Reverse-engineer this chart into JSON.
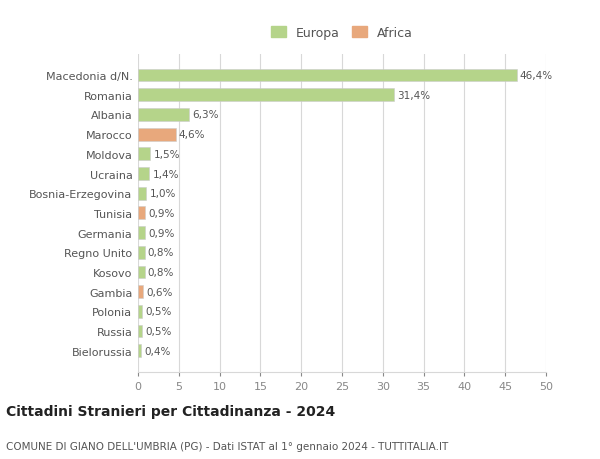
{
  "categories": [
    "Macedonia d/N.",
    "Romania",
    "Albania",
    "Marocco",
    "Moldova",
    "Ucraina",
    "Bosnia-Erzegovina",
    "Tunisia",
    "Germania",
    "Regno Unito",
    "Kosovo",
    "Gambia",
    "Polonia",
    "Russia",
    "Bielorussia"
  ],
  "values": [
    46.4,
    31.4,
    6.3,
    4.6,
    1.5,
    1.4,
    1.0,
    0.9,
    0.9,
    0.8,
    0.8,
    0.6,
    0.5,
    0.5,
    0.4
  ],
  "labels": [
    "46,4%",
    "31,4%",
    "6,3%",
    "4,6%",
    "1,5%",
    "1,4%",
    "1,0%",
    "0,9%",
    "0,9%",
    "0,8%",
    "0,8%",
    "0,6%",
    "0,5%",
    "0,5%",
    "0,4%"
  ],
  "continents": [
    "Europa",
    "Europa",
    "Europa",
    "Africa",
    "Europa",
    "Europa",
    "Europa",
    "Africa",
    "Europa",
    "Europa",
    "Europa",
    "Africa",
    "Europa",
    "Europa",
    "Europa"
  ],
  "color_europa": "#b5d48a",
  "color_africa": "#e8a87c",
  "bar_edge_color": "#cccccc",
  "background_color": "#ffffff",
  "grid_color": "#d8d8d8",
  "title": "Cittadini Stranieri per Cittadinanza - 2024",
  "subtitle": "COMUNE DI GIANO DELL'UMBRIA (PG) - Dati ISTAT al 1° gennaio 2024 - TUTTITALIA.IT",
  "xlim": [
    0,
    50
  ],
  "xticks": [
    0,
    5,
    10,
    15,
    20,
    25,
    30,
    35,
    40,
    45,
    50
  ],
  "legend_europa": "Europa",
  "legend_africa": "Africa",
  "fig_width": 6.0,
  "fig_height": 4.6,
  "dpi": 100
}
